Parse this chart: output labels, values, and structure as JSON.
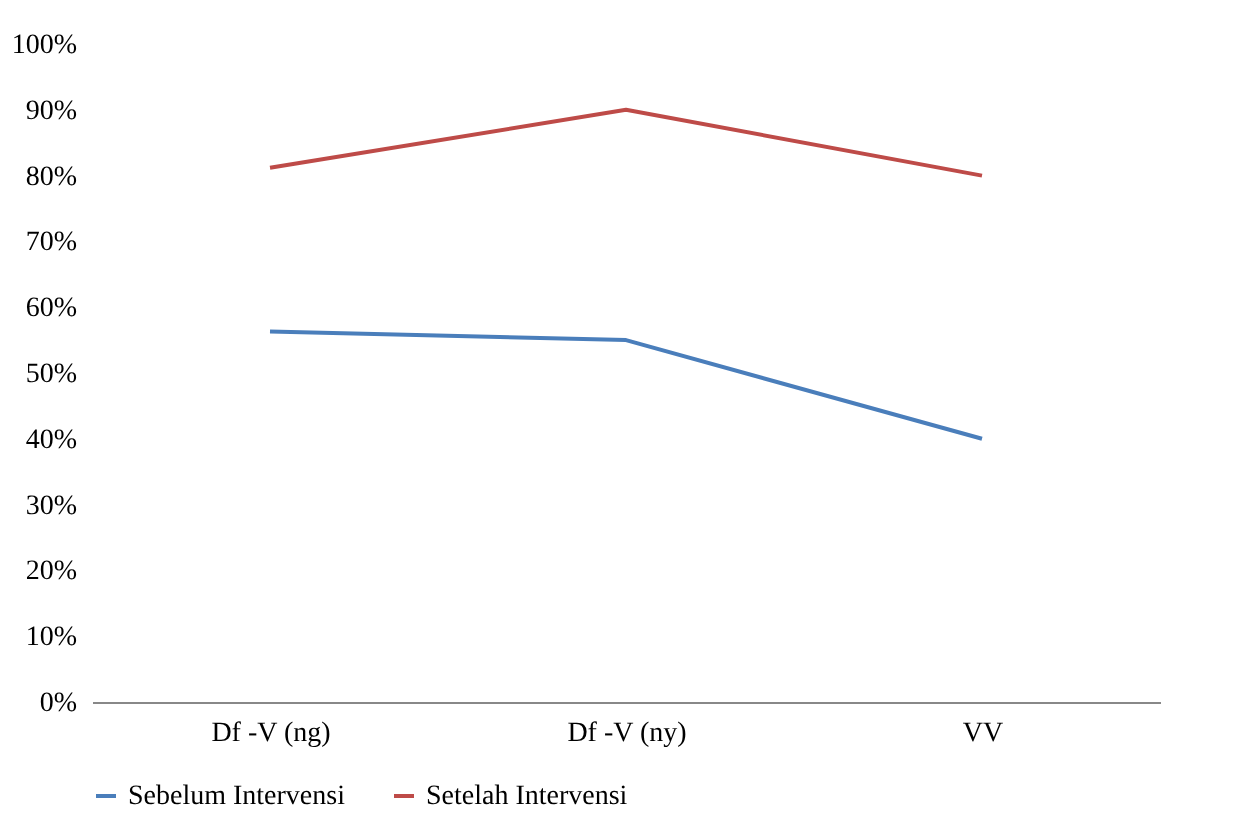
{
  "chart_data": {
    "type": "line",
    "categories": [
      "Df -V (ng)",
      "Df -V (ny)",
      "VV"
    ],
    "series": [
      {
        "name": "Sebelum Intervensi",
        "color": "#4a7ebb",
        "values": [
          56.3,
          55,
          40
        ]
      },
      {
        "name": "Setelah Intervensi",
        "color": "#be4b48",
        "values": [
          81.2,
          90,
          80
        ]
      }
    ],
    "ylim": [
      0,
      100
    ],
    "yticks": [
      {
        "value": 0,
        "label": "0%"
      },
      {
        "value": 10,
        "label": "10%"
      },
      {
        "value": 20,
        "label": "20%"
      },
      {
        "value": 30,
        "label": "30%"
      },
      {
        "value": 40,
        "label": "40%"
      },
      {
        "value": 50,
        "label": "50%"
      },
      {
        "value": 60,
        "label": "60%"
      },
      {
        "value": 70,
        "label": "70%"
      },
      {
        "value": 80,
        "label": "80%"
      },
      {
        "value": 90,
        "label": "90%"
      },
      {
        "value": 100,
        "label": "100%"
      }
    ],
    "grid": false,
    "legend": "bottom",
    "marker": "none",
    "line_style": "solid"
  }
}
